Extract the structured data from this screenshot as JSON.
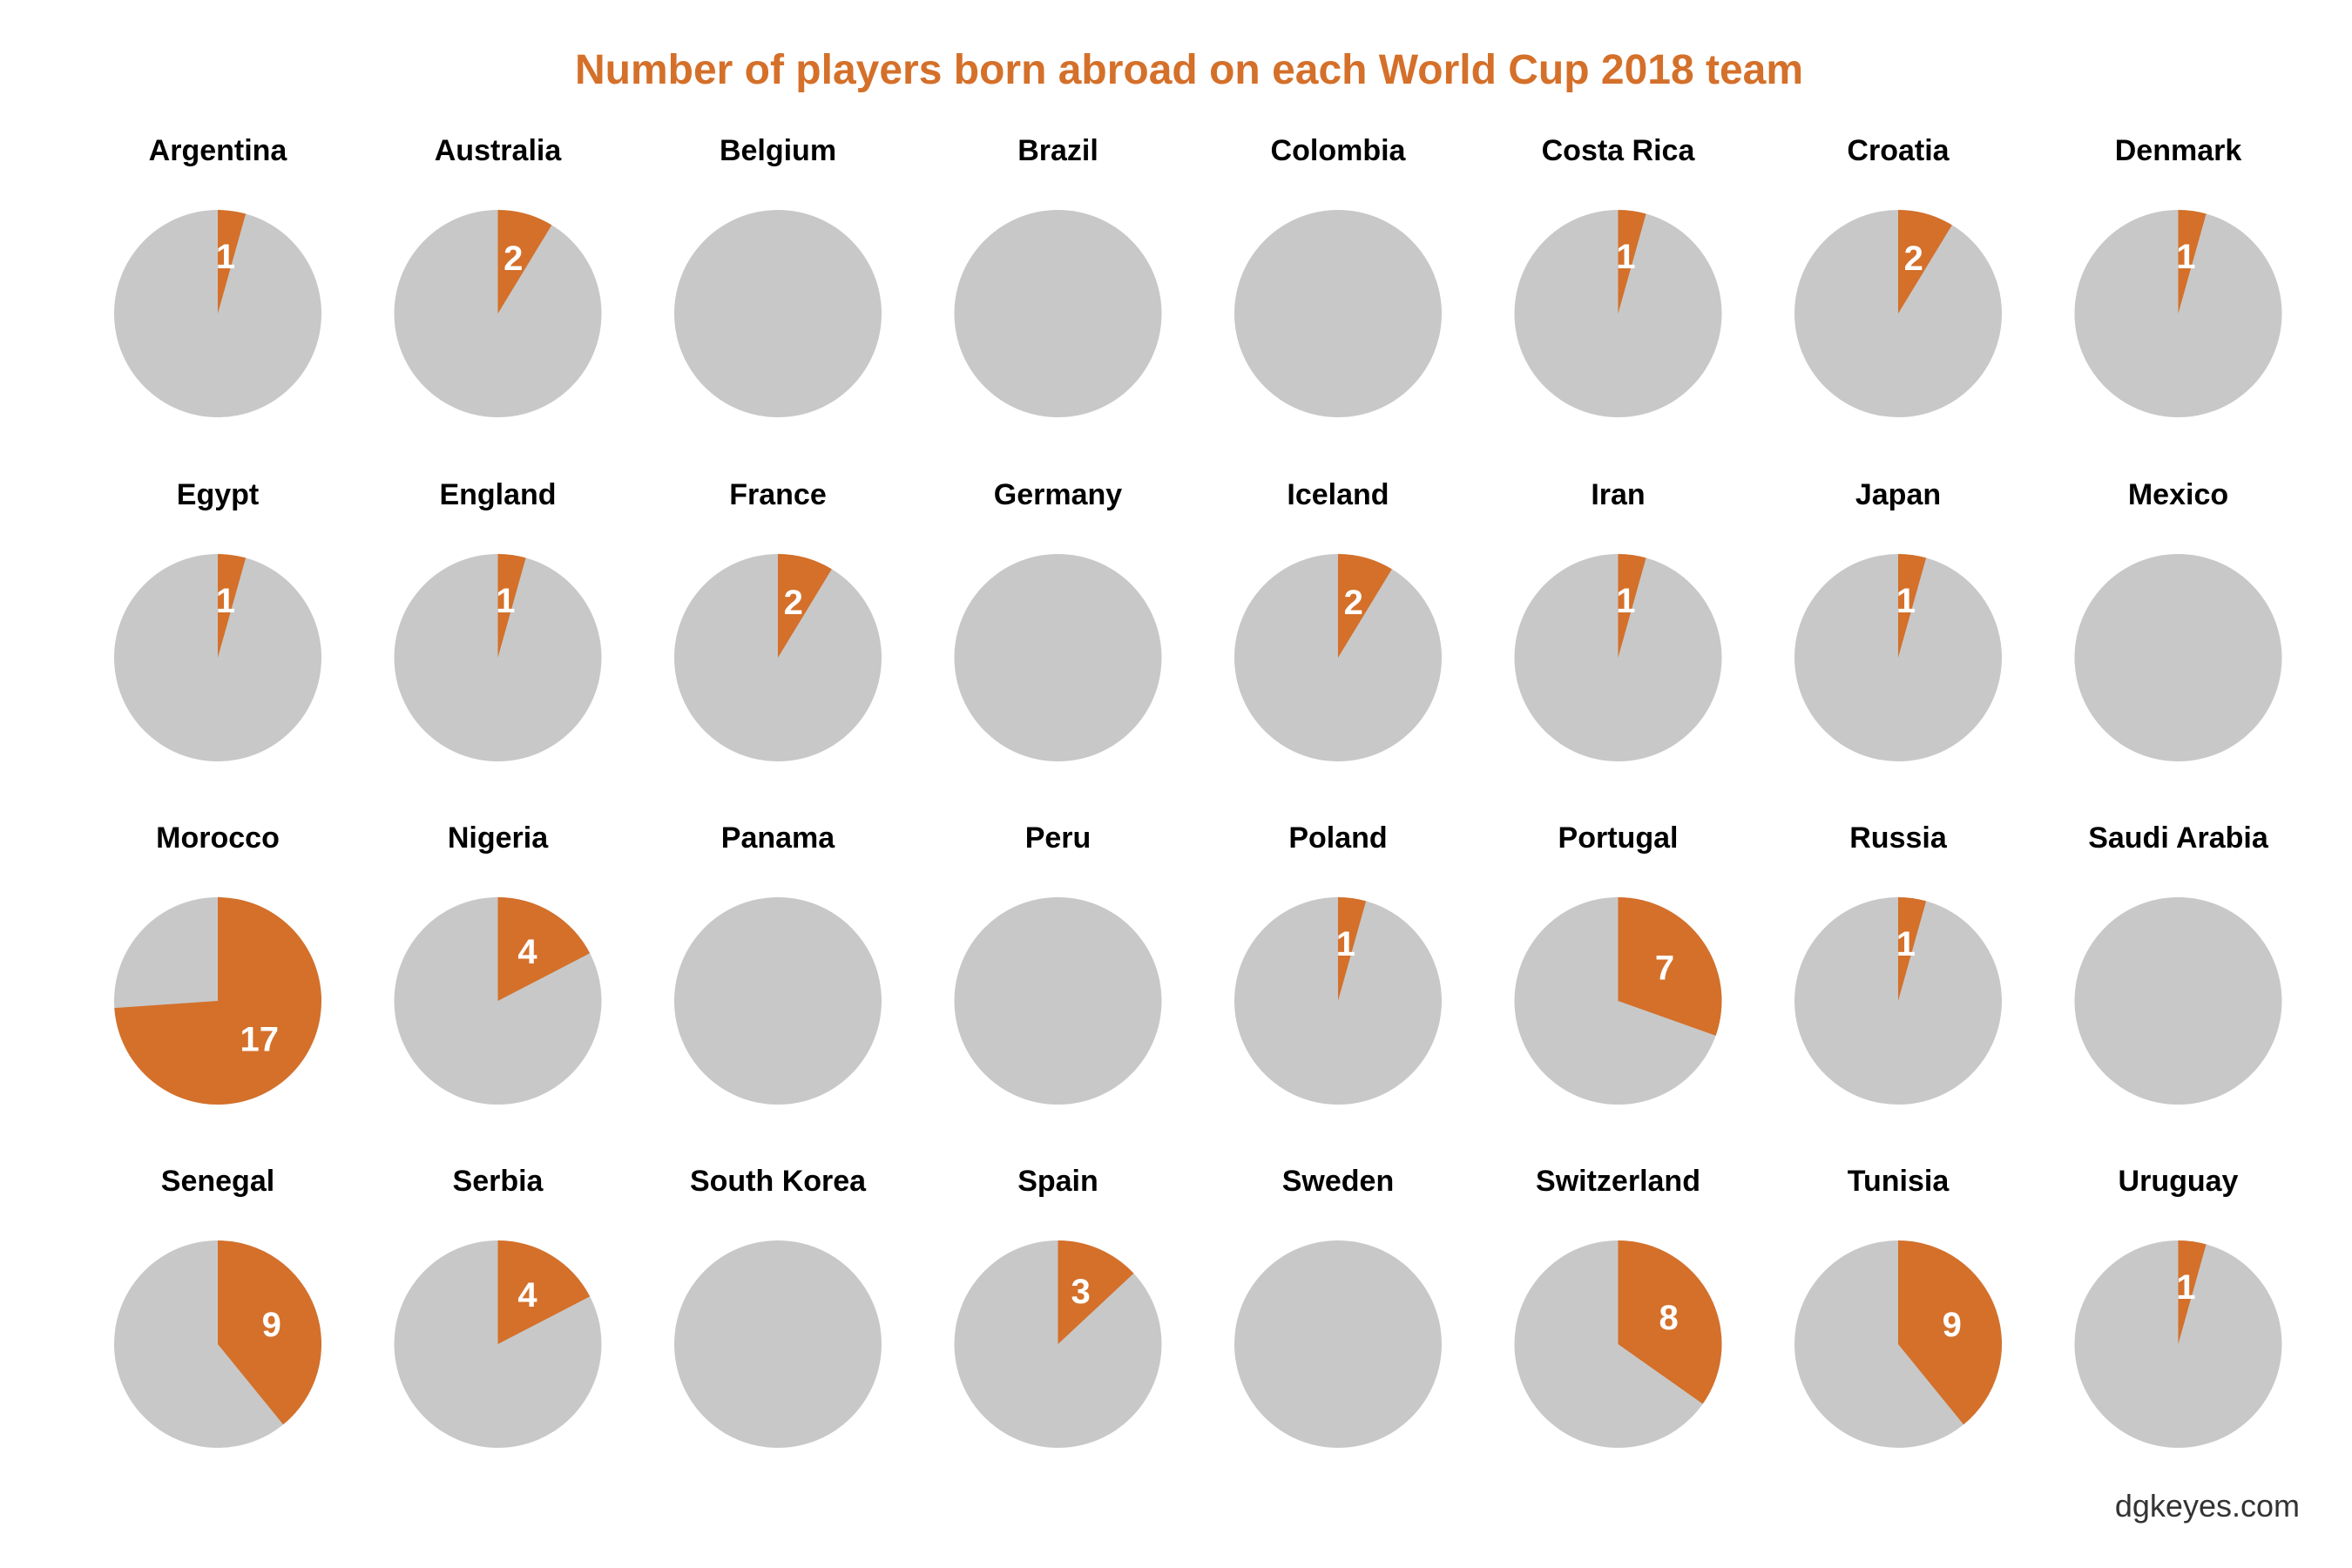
{
  "chart_data": {
    "type": "pie",
    "title": "Number of players born abroad on each World Cup 2018 team",
    "credit": "dgkeyes.com",
    "squad_size": 23,
    "colors": {
      "born_abroad": "#D4702A",
      "born_home": "#C8C8C8",
      "title": "#D4702A",
      "slice_text": "#FFFFFF"
    },
    "teams": [
      {
        "name": "Argentina",
        "value": 1
      },
      {
        "name": "Australia",
        "value": 2
      },
      {
        "name": "Belgium",
        "value": 0
      },
      {
        "name": "Brazil",
        "value": 0
      },
      {
        "name": "Colombia",
        "value": 0
      },
      {
        "name": "Costa Rica",
        "value": 1
      },
      {
        "name": "Croatia",
        "value": 2
      },
      {
        "name": "Denmark",
        "value": 1
      },
      {
        "name": "Egypt",
        "value": 1
      },
      {
        "name": "England",
        "value": 1
      },
      {
        "name": "France",
        "value": 2
      },
      {
        "name": "Germany",
        "value": 0
      },
      {
        "name": "Iceland",
        "value": 2
      },
      {
        "name": "Iran",
        "value": 1
      },
      {
        "name": "Japan",
        "value": 1
      },
      {
        "name": "Mexico",
        "value": 0
      },
      {
        "name": "Morocco",
        "value": 17
      },
      {
        "name": "Nigeria",
        "value": 4
      },
      {
        "name": "Panama",
        "value": 0
      },
      {
        "name": "Peru",
        "value": 0
      },
      {
        "name": "Poland",
        "value": 1
      },
      {
        "name": "Portugal",
        "value": 7
      },
      {
        "name": "Russia",
        "value": 1
      },
      {
        "name": "Saudi Arabia",
        "value": 0
      },
      {
        "name": "Senegal",
        "value": 9
      },
      {
        "name": "Serbia",
        "value": 4
      },
      {
        "name": "South Korea",
        "value": 0
      },
      {
        "name": "Spain",
        "value": 3
      },
      {
        "name": "Sweden",
        "value": 0
      },
      {
        "name": "Switzerland",
        "value": 8
      },
      {
        "name": "Tunisia",
        "value": 9
      },
      {
        "name": "Uruguay",
        "value": 1
      }
    ]
  }
}
